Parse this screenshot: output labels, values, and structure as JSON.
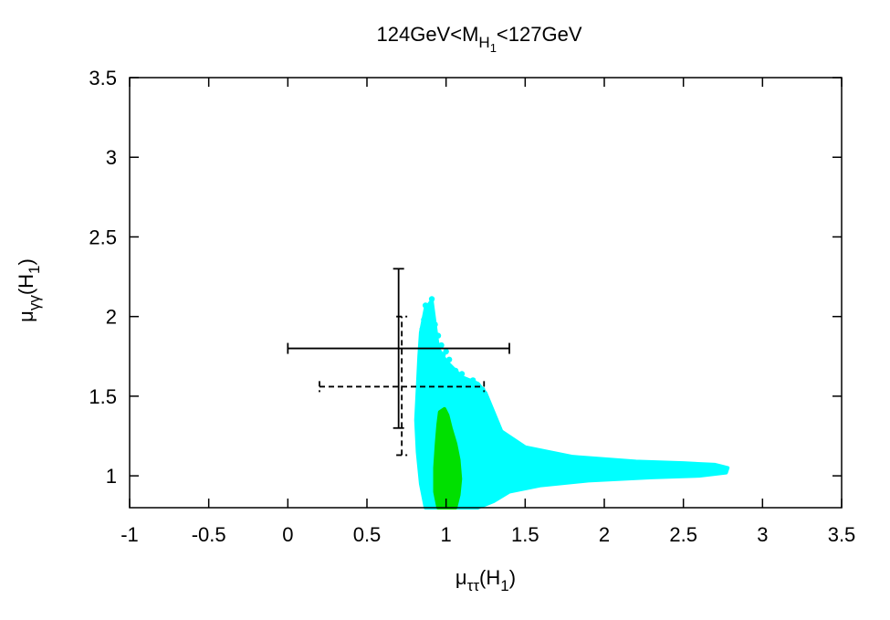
{
  "chart_data": {
    "type": "scatter",
    "title": {
      "main": "124GeV<M",
      "sub1": "H",
      "sub2": "1",
      "tail": "<127GeV"
    },
    "xlabel": {
      "sym": "μ",
      "sub": "ττ",
      "tail": "(H",
      "tail_sub": "1",
      "close": ")"
    },
    "ylabel": {
      "sym": "μ",
      "sub": "γγ",
      "tail": "(H",
      "tail_sub": "1",
      "close": ")"
    },
    "xlim": [
      -1,
      3.5
    ],
    "ylim": [
      0.8,
      3.5
    ],
    "xticks": [
      "-1",
      "-0.5",
      "0",
      "0.5",
      "1",
      "1.5",
      "2",
      "2.5",
      "3",
      "3.5"
    ],
    "xtick_values": [
      -1,
      -0.5,
      0,
      0.5,
      1,
      1.5,
      2,
      2.5,
      3,
      3.5
    ],
    "yticks": [
      "1",
      "1.5",
      "2",
      "2.5",
      "3",
      "3.5"
    ],
    "ytick_values": [
      1,
      1.5,
      2,
      2.5,
      3,
      3.5
    ],
    "grid": false,
    "colors": {
      "cyan": "#00ffff",
      "green": "#00e000",
      "axes": "#000000"
    },
    "cyan_region": {
      "color": "#00ffff",
      "outline": [
        [
          0.87,
          0.8
        ],
        [
          0.84,
          0.95
        ],
        [
          0.82,
          1.15
        ],
        [
          0.81,
          1.35
        ],
        [
          0.82,
          1.55
        ],
        [
          0.83,
          1.75
        ],
        [
          0.84,
          1.9
        ],
        [
          0.87,
          2.05
        ],
        [
          0.91,
          2.1
        ],
        [
          0.93,
          1.95
        ],
        [
          0.95,
          1.8
        ],
        [
          1.0,
          1.72
        ],
        [
          1.1,
          1.62
        ],
        [
          1.2,
          1.58
        ],
        [
          1.25,
          1.52
        ],
        [
          1.35,
          1.28
        ],
        [
          1.5,
          1.18
        ],
        [
          1.8,
          1.12
        ],
        [
          2.2,
          1.09
        ],
        [
          2.5,
          1.08
        ],
        [
          2.7,
          1.07
        ],
        [
          2.78,
          1.05
        ],
        [
          2.77,
          1.02
        ],
        [
          2.6,
          1.0
        ],
        [
          2.3,
          0.99
        ],
        [
          1.9,
          0.97
        ],
        [
          1.6,
          0.94
        ],
        [
          1.4,
          0.9
        ],
        [
          1.3,
          0.84
        ],
        [
          1.2,
          0.8
        ]
      ],
      "points": [
        [
          0.91,
          2.11
        ],
        [
          0.87,
          2.07
        ],
        [
          0.9,
          2.05
        ],
        [
          0.88,
          2.02
        ],
        [
          0.86,
          1.98
        ],
        [
          0.9,
          1.97
        ],
        [
          0.93,
          1.95
        ],
        [
          0.88,
          1.93
        ],
        [
          0.85,
          1.92
        ],
        [
          0.92,
          1.9
        ],
        [
          1.0,
          1.78
        ],
        [
          0.97,
          1.82
        ],
        [
          1.02,
          1.73
        ],
        [
          1.06,
          1.66
        ],
        [
          1.17,
          1.6
        ],
        [
          1.2,
          1.57
        ],
        [
          1.23,
          1.54
        ],
        [
          0.95,
          1.88
        ],
        [
          0.98,
          1.76
        ],
        [
          1.1,
          1.64
        ]
      ]
    },
    "green_region": {
      "color": "#00e000",
      "outline": [
        [
          0.95,
          0.8
        ],
        [
          0.93,
          0.9
        ],
        [
          0.93,
          1.05
        ],
        [
          0.94,
          1.2
        ],
        [
          0.95,
          1.32
        ],
        [
          0.96,
          1.4
        ],
        [
          0.99,
          1.42
        ],
        [
          1.01,
          1.38
        ],
        [
          1.03,
          1.3
        ],
        [
          1.06,
          1.2
        ],
        [
          1.08,
          1.1
        ],
        [
          1.09,
          0.98
        ],
        [
          1.08,
          0.88
        ],
        [
          1.06,
          0.8
        ]
      ]
    },
    "error_bars": [
      {
        "name": "solid",
        "style": "solid",
        "x": 0.7,
        "y": 1.8,
        "x_range": [
          0.0,
          1.4
        ],
        "y_range": [
          1.3,
          2.3
        ]
      },
      {
        "name": "dashed",
        "style": "dashed",
        "x": 0.72,
        "y": 1.56,
        "x_range": [
          0.2,
          1.24
        ],
        "y_range": [
          1.13,
          2.0
        ]
      }
    ]
  }
}
